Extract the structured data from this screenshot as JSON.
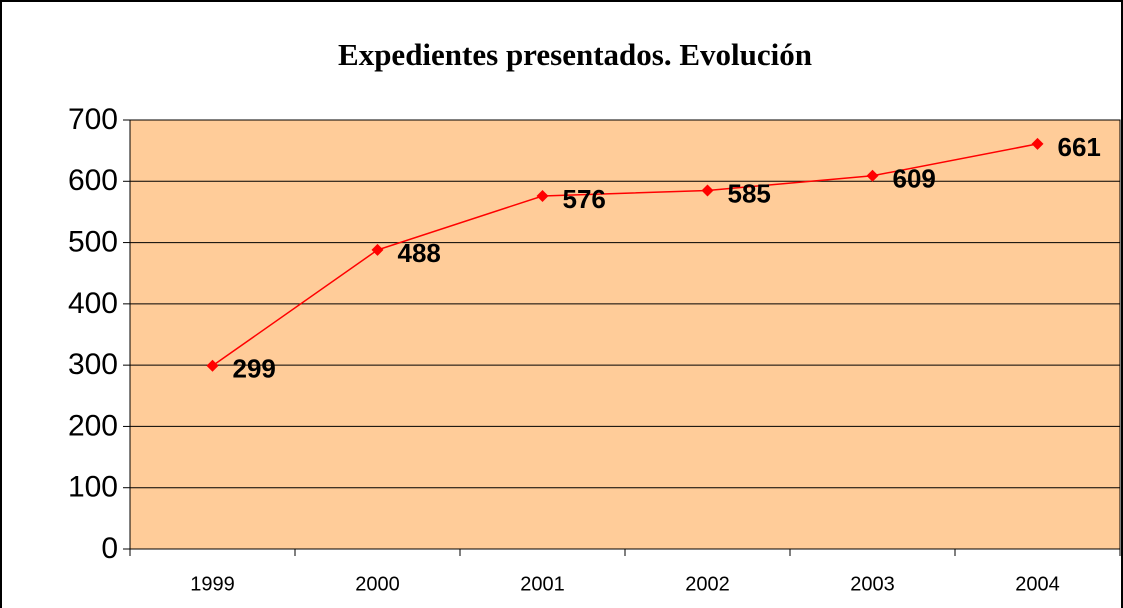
{
  "chart_data": {
    "type": "line",
    "title": "Expedientes presentados. Evolución",
    "categories": [
      "1999",
      "2000",
      "2001",
      "2002",
      "2003",
      "2004"
    ],
    "series": [
      {
        "name": "Expedientes",
        "color": "#ff0000",
        "values": [
          299,
          488,
          576,
          585,
          609,
          661
        ]
      }
    ],
    "ylim": [
      0,
      700
    ],
    "yticks": [
      0,
      100,
      200,
      300,
      400,
      500,
      600,
      700
    ],
    "grid": true,
    "plot_background": "#ffcc99"
  }
}
